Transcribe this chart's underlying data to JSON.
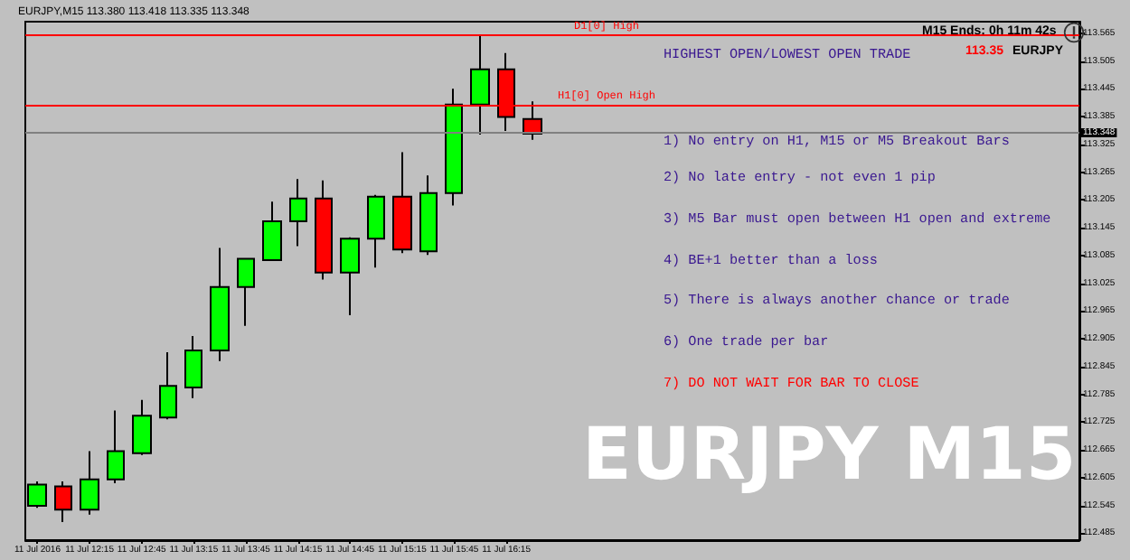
{
  "chart_data": {
    "type": "candlestick",
    "title": "EURJPY M15",
    "subtitle": "HIGHEST OPEN/LOWEST OPEN TRADE",
    "x": [
      "2016-07-11T11:45",
      "2016-07-11T12:00",
      "2016-07-11T12:15",
      "2016-07-11T12:30",
      "2016-07-11T12:45",
      "2016-07-11T13:00",
      "2016-07-11T13:15",
      "2016-07-11T13:30",
      "2016-07-11T13:45",
      "2016-07-11T14:00",
      "2016-07-11T14:15",
      "2016-07-11T14:30",
      "2016-07-11T14:45",
      "2016-07-11T15:00",
      "2016-07-11T15:15",
      "2016-07-11T15:30",
      "2016-07-11T15:45",
      "2016-07-11T16:00",
      "2016-07-11T16:15",
      "2016-07-11T16:30"
    ],
    "xlim": [
      "2016-07-11T11:38",
      "2016-07-11T21:45"
    ],
    "xticks": [
      {
        "value": "2016-07-11T11:45",
        "label": "11 Jul 2016"
      },
      {
        "value": "2016-07-11T12:15",
        "label": "11 Jul 12:15"
      },
      {
        "value": "2016-07-11T12:45",
        "label": "11 Jul 12:45"
      },
      {
        "value": "2016-07-11T13:15",
        "label": "11 Jul 13:15"
      },
      {
        "value": "2016-07-11T13:45",
        "label": "11 Jul 13:45"
      },
      {
        "value": "2016-07-11T14:15",
        "label": "11 Jul 14:15"
      },
      {
        "value": "2016-07-11T14:45",
        "label": "11 Jul 14:45"
      },
      {
        "value": "2016-07-11T15:15",
        "label": "11 Jul 15:15"
      },
      {
        "value": "2016-07-11T15:45",
        "label": "11 Jul 15:45"
      },
      {
        "value": "2016-07-11T16:15",
        "label": "11 Jul 16:15"
      }
    ],
    "ohlc": [
      [
        112.544,
        112.597,
        112.54,
        112.59
      ],
      [
        112.586,
        112.597,
        112.509,
        112.536
      ],
      [
        112.536,
        112.662,
        112.525,
        112.601
      ],
      [
        112.601,
        112.75,
        112.593,
        112.662
      ],
      [
        112.658,
        112.773,
        112.654,
        112.739
      ],
      [
        112.735,
        112.876,
        112.731,
        112.803
      ],
      [
        112.8,
        112.911,
        112.777,
        112.88
      ],
      [
        112.88,
        113.101,
        112.857,
        113.017
      ],
      [
        113.017,
        113.078,
        112.933,
        113.078
      ],
      [
        113.075,
        113.201,
        113.075,
        113.159
      ],
      [
        113.159,
        113.25,
        113.105,
        113.208
      ],
      [
        113.208,
        113.247,
        113.033,
        113.048
      ],
      [
        113.048,
        113.124,
        112.956,
        113.121
      ],
      [
        113.121,
        113.216,
        113.059,
        113.212
      ],
      [
        113.212,
        113.308,
        113.09,
        113.098
      ],
      [
        113.094,
        113.258,
        113.086,
        113.22
      ],
      [
        113.22,
        113.445,
        113.193,
        113.411
      ],
      [
        113.411,
        113.56,
        113.346,
        113.487
      ],
      [
        113.487,
        113.522,
        113.354,
        113.384
      ],
      [
        113.38,
        113.418,
        113.335,
        113.348
      ]
    ],
    "colors": [
      "#00ff00",
      "#ff0000",
      "#00ff00",
      "#00ff00",
      "#00ff00",
      "#00ff00",
      "#00ff00",
      "#00ff00",
      "#00ff00",
      "#00ff00",
      "#00ff00",
      "#ff0000",
      "#00ff00",
      "#00ff00",
      "#ff0000",
      "#00ff00",
      "#00ff00",
      "#00ff00",
      "#ff0000",
      "#ff0000"
    ],
    "ylim": [
      112.47,
      113.59
    ],
    "yticks": [
      112.485,
      112.545,
      112.605,
      112.665,
      112.725,
      112.785,
      112.845,
      112.905,
      112.965,
      113.025,
      113.085,
      113.145,
      113.205,
      113.265,
      113.325,
      113.385,
      113.445,
      113.505,
      113.565
    ],
    "ref_lines": [
      {
        "axis": "y",
        "value": 113.56,
        "label": "D1[0] High",
        "color": "#ff0000"
      },
      {
        "axis": "y",
        "value": 113.411,
        "label": "H1[0] Open High",
        "color": "#ff0000"
      },
      {
        "axis": "y",
        "value": 113.348,
        "label": "113.348",
        "color": "#808080"
      }
    ],
    "annotations": [
      "EURJPY,M15 113.380 113.418 113.335 113.348",
      "M15 Ends: 0h 11m 42s",
      "113.35",
      "EURJPY",
      "1) No entry on H1, M15 or M5 Breakout Bars",
      "2) No late entry - not even 1 pip",
      "3) M5 Bar must open between H1 open and extreme",
      "4) BE+1 better than a loss",
      "5) There is always another chance or trade",
      "6) One trade per bar",
      "7) DO NOT WAIT FOR BAR TO CLOSE"
    ],
    "grid": false
  }
}
